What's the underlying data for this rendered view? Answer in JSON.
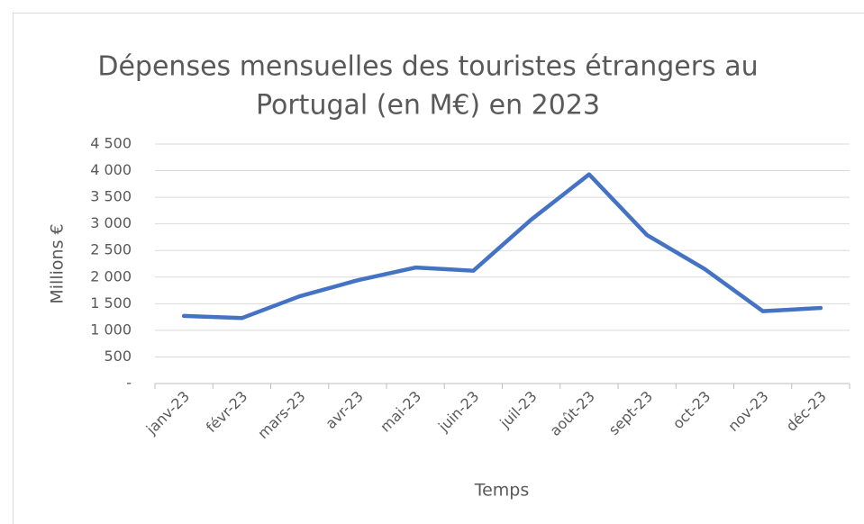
{
  "chart_data": {
    "type": "line",
    "title": [
      "Dépenses mensuelles des touristes étrangers au",
      "Portugal (en M€) en 2023"
    ],
    "x_label": "Temps",
    "y_label": "Millions €",
    "categories": [
      "janv-23",
      "févr-23",
      "mars-23",
      "avr-23",
      "mai-23",
      "juin-23",
      "juil-23",
      "août-23",
      "sept-23",
      "oct-23",
      "nov-23",
      "déc-23"
    ],
    "series": [
      {
        "name": "Dépenses",
        "color": "#4472c4",
        "values": [
          1270,
          1230,
          1640,
          1940,
          2180,
          2120,
          3080,
          3930,
          2790,
          2150,
          1360,
          1420
        ]
      }
    ],
    "ylim": [
      0,
      4500
    ],
    "yticks": [
      {
        "value": 0,
        "label": "-"
      },
      500,
      {
        "value": 1000,
        "label": "1 000"
      },
      {
        "value": 1500,
        "label": "1 500"
      },
      {
        "value": 2000,
        "label": "2 000"
      },
      {
        "value": 2500,
        "label": "2 500"
      },
      {
        "value": 3000,
        "label": "3 000"
      },
      {
        "value": 3500,
        "label": "3 500"
      },
      {
        "value": 4000,
        "label": "4 000"
      },
      {
        "value": 4500,
        "label": "4 500"
      }
    ],
    "grid": true,
    "legend": false
  }
}
